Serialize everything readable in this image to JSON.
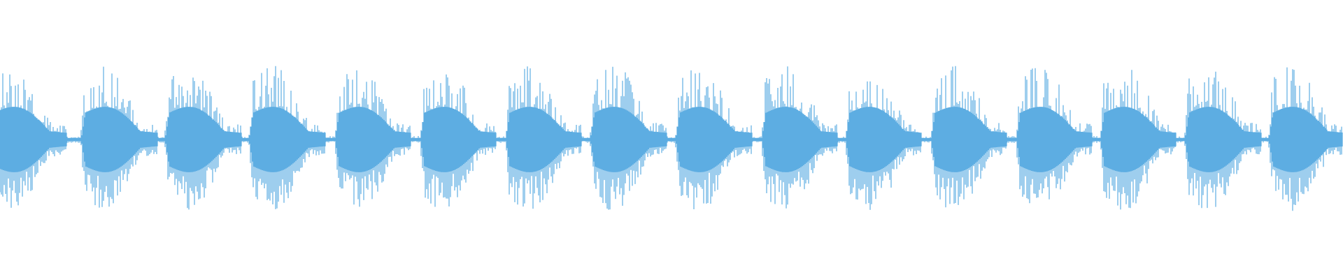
{
  "waveform": {
    "type": "audio-waveform",
    "color": "#5dade2",
    "background": "#ffffff",
    "burst_count": 16
  }
}
